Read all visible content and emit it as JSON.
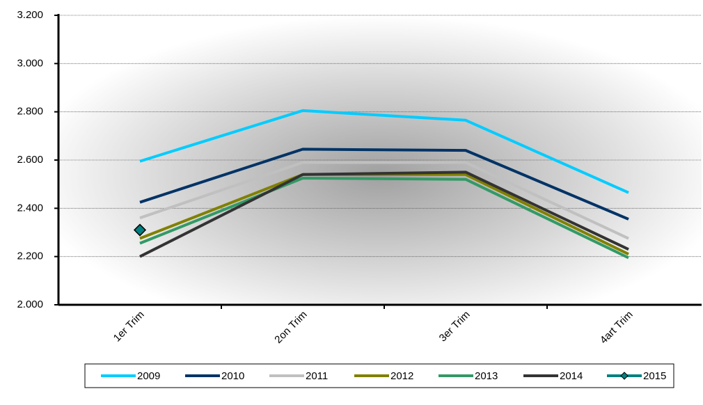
{
  "chart_data": {
    "type": "line",
    "categories": [
      "1er Trim",
      "2on Trim",
      "3er Trim",
      "4art Trim"
    ],
    "series": [
      {
        "name": "2009",
        "color": "#00ccff",
        "values": [
          2595,
          2805,
          2765,
          2465
        ]
      },
      {
        "name": "2010",
        "color": "#003366",
        "values": [
          2425,
          2645,
          2640,
          2355
        ]
      },
      {
        "name": "2011",
        "color": "#c0c0c0",
        "values": [
          2360,
          2590,
          2590,
          2275
        ]
      },
      {
        "name": "2012",
        "color": "#808000",
        "values": [
          2275,
          2540,
          2540,
          2210
        ]
      },
      {
        "name": "2013",
        "color": "#339966",
        "values": [
          2255,
          2525,
          2520,
          2195
        ]
      },
      {
        "name": "2014",
        "color": "#333333",
        "values": [
          2200,
          2540,
          2550,
          2230
        ]
      },
      {
        "name": "2015",
        "color": "#008080",
        "marker": "diamond",
        "values": [
          2310,
          null,
          null,
          null
        ]
      }
    ],
    "ylim": [
      2000,
      3200
    ],
    "yticks": [
      {
        "value": 2000,
        "label": "2.000"
      },
      {
        "value": 2200,
        "label": "2.200"
      },
      {
        "value": 2400,
        "label": "2.400"
      },
      {
        "value": 2600,
        "label": "2.600"
      },
      {
        "value": 2800,
        "label": "2.800"
      },
      {
        "value": 3000,
        "label": "3.000"
      },
      {
        "value": 3200,
        "label": "3.200"
      }
    ],
    "grid": true,
    "legend": "bottom"
  }
}
